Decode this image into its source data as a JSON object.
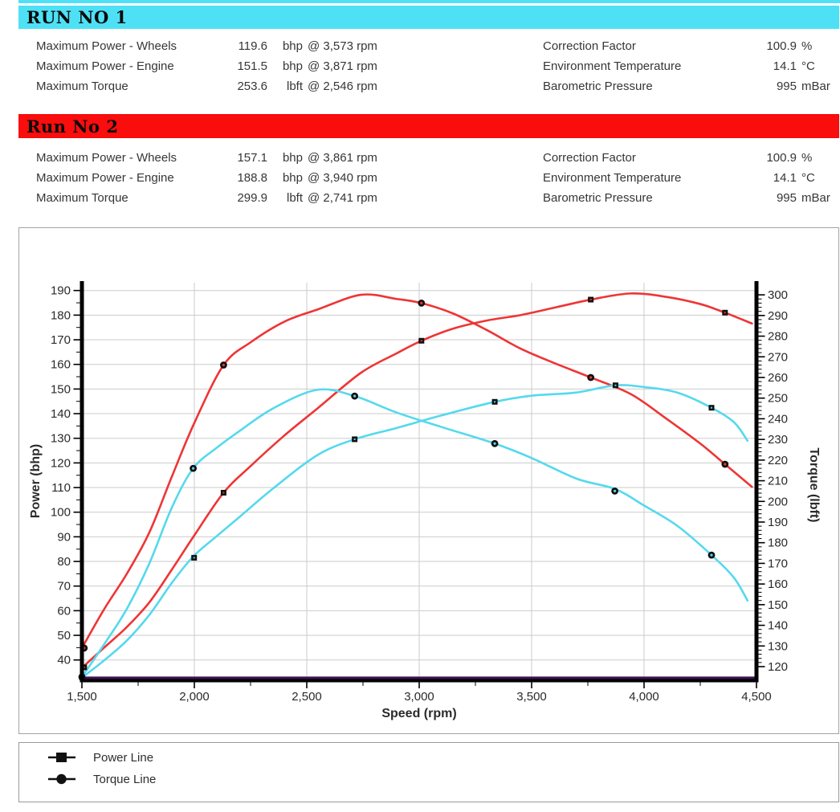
{
  "runs": [
    {
      "title": "RUN NO 1",
      "color": "#4ee1f6",
      "rows": [
        {
          "label": "Maximum Power - Wheels",
          "value": "119.6",
          "unit": "bhp",
          "at": "@ 3,573 rpm"
        },
        {
          "label": "Maximum Power - Engine",
          "value": "151.5",
          "unit": "bhp",
          "at": "@ 3,871 rpm"
        },
        {
          "label": "Maximum Torque",
          "value": "253.6",
          "unit": "lbft",
          "at": "@ 2,546 rpm"
        }
      ],
      "env": [
        {
          "label": "Correction Factor",
          "value": "100.9",
          "unit": "%"
        },
        {
          "label": "Environment Temperature",
          "value": "14.1",
          "unit": "°C"
        },
        {
          "label": "Barometric Pressure",
          "value": "995",
          "unit": "mBar"
        }
      ]
    },
    {
      "title": "Run No 2",
      "color": "#f90d0d",
      "rows": [
        {
          "label": "Maximum Power - Wheels",
          "value": "157.1",
          "unit": "bhp",
          "at": "@ 3,861 rpm"
        },
        {
          "label": "Maximum Power - Engine",
          "value": "188.8",
          "unit": "bhp",
          "at": "@ 3,940 rpm"
        },
        {
          "label": "Maximum Torque",
          "value": "299.9",
          "unit": "lbft",
          "at": "@ 2,741 rpm"
        }
      ],
      "env": [
        {
          "label": "Correction Factor",
          "value": "100.9",
          "unit": "%"
        },
        {
          "label": "Environment Temperature",
          "value": "14.1",
          "unit": "°C"
        },
        {
          "label": "Barometric Pressure",
          "value": "995",
          "unit": "mBar"
        }
      ]
    }
  ],
  "chart_data": {
    "type": "line",
    "xlabel": "Speed (rpm)",
    "ylabel_left": "Power (bhp)",
    "ylabel_right": "Torque (lbft)",
    "x_range": [
      1500,
      4500
    ],
    "x_tick_step": 500,
    "x_minor_step": 250,
    "power_axis": {
      "min": 40,
      "max": 190,
      "tick_step": 10,
      "minor_step": 5
    },
    "torque_axis": {
      "min": 120,
      "max": 300,
      "tick_step": 10,
      "minor_step": 2
    },
    "grid_color": "#cbcbcb",
    "series": [
      {
        "name": "run2-torque-line",
        "run": "Run No 2",
        "measure": "torque",
        "axis": "torque",
        "color": "#ee3535",
        "marker": "circle",
        "points": [
          [
            1500,
            129
          ],
          [
            1600,
            148
          ],
          [
            1700,
            165
          ],
          [
            1800,
            185
          ],
          [
            1900,
            212
          ],
          [
            2000,
            238
          ],
          [
            2130,
            266
          ],
          [
            2250,
            277
          ],
          [
            2400,
            287
          ],
          [
            2550,
            293
          ],
          [
            2741,
            300
          ],
          [
            2900,
            298
          ],
          [
            3010,
            296
          ],
          [
            3150,
            291
          ],
          [
            3300,
            283
          ],
          [
            3450,
            274
          ],
          [
            3600,
            267
          ],
          [
            3763,
            260
          ],
          [
            3940,
            252
          ],
          [
            4100,
            240
          ],
          [
            4250,
            228
          ],
          [
            4360,
            218
          ],
          [
            4480,
            207
          ]
        ],
        "marker_points": [
          [
            1510,
            129
          ],
          [
            2130,
            266
          ],
          [
            3010,
            296
          ],
          [
            3763,
            260
          ],
          [
            4360,
            218
          ]
        ]
      },
      {
        "name": "run2-power-line",
        "run": "Run No 2",
        "measure": "power",
        "axis": "power",
        "color": "#ee3535",
        "marker": "square",
        "points": [
          [
            1500,
            36.8
          ],
          [
            1600,
            45.1
          ],
          [
            1700,
            53.4
          ],
          [
            1800,
            63.4
          ],
          [
            1900,
            76.7
          ],
          [
            2000,
            90.6
          ],
          [
            2130,
            107.9
          ],
          [
            2250,
            118.7
          ],
          [
            2400,
            131.1
          ],
          [
            2550,
            142.3
          ],
          [
            2741,
            156.6
          ],
          [
            2900,
            164.5
          ],
          [
            3010,
            169.6
          ],
          [
            3150,
            174.5
          ],
          [
            3300,
            177.8
          ],
          [
            3450,
            180.0
          ],
          [
            3600,
            183.0
          ],
          [
            3763,
            186.3
          ],
          [
            3940,
            188.8
          ],
          [
            4100,
            187.4
          ],
          [
            4250,
            184.5
          ],
          [
            4360,
            181.0
          ],
          [
            4480,
            176.6
          ]
        ],
        "marker_points": [
          [
            1510,
            37
          ],
          [
            2130,
            107.9
          ],
          [
            3010,
            169.6
          ],
          [
            3763,
            186.3
          ],
          [
            4360,
            181.0
          ]
        ]
      },
      {
        "name": "run1-torque-line",
        "run": "RUN NO 1",
        "measure": "torque",
        "axis": "torque",
        "color": "#55d9ed",
        "marker": "circle",
        "points": [
          [
            1500,
            115
          ],
          [
            1600,
            131
          ],
          [
            1700,
            148
          ],
          [
            1800,
            170
          ],
          [
            1900,
            197
          ],
          [
            1995,
            216
          ],
          [
            2100,
            226
          ],
          [
            2200,
            234
          ],
          [
            2350,
            245
          ],
          [
            2546,
            254
          ],
          [
            2713,
            251
          ],
          [
            2900,
            243
          ],
          [
            3100,
            236
          ],
          [
            3336,
            228
          ],
          [
            3500,
            221
          ],
          [
            3700,
            211
          ],
          [
            3871,
            206
          ],
          [
            4000,
            198
          ],
          [
            4150,
            188
          ],
          [
            4300,
            174
          ],
          [
            4400,
            163
          ],
          [
            4460,
            152
          ]
        ],
        "marker_points": [
          [
            1500,
            115
          ],
          [
            1995,
            216
          ],
          [
            2713,
            251
          ],
          [
            3336,
            228
          ],
          [
            3870,
            205
          ],
          [
            4300,
            174
          ]
        ]
      },
      {
        "name": "run1-power-line",
        "run": "RUN NO 1",
        "measure": "power",
        "axis": "power",
        "color": "#55d9ed",
        "marker": "square",
        "points": [
          [
            1500,
            32.8
          ],
          [
            1600,
            39.9
          ],
          [
            1700,
            47.9
          ],
          [
            1800,
            58.3
          ],
          [
            1900,
            71.3
          ],
          [
            1995,
            82.0
          ],
          [
            2100,
            90.3
          ],
          [
            2200,
            98.0
          ],
          [
            2350,
            109.6
          ],
          [
            2546,
            123.1
          ],
          [
            2713,
            129.6
          ],
          [
            2900,
            134.2
          ],
          [
            3100,
            139.3
          ],
          [
            3336,
            144.8
          ],
          [
            3500,
            147.3
          ],
          [
            3700,
            148.6
          ],
          [
            3871,
            151.5
          ],
          [
            4000,
            150.8
          ],
          [
            4150,
            148.5
          ],
          [
            4300,
            142.4
          ],
          [
            4400,
            136.5
          ],
          [
            4460,
            129.0
          ]
        ],
        "marker_points": [
          [
            1500,
            33
          ],
          [
            1999,
            81.5
          ],
          [
            2713,
            129.6
          ],
          [
            3336,
            144.8
          ],
          [
            3873,
            151.5
          ],
          [
            4300,
            142.4
          ]
        ]
      },
      {
        "name": "baseline-line",
        "run": "",
        "measure": "baseline",
        "axis": "torque",
        "color": "#3c1050",
        "marker": "none",
        "points": [
          [
            1500,
            114.5
          ],
          [
            4500,
            114.5
          ]
        ],
        "marker_points": []
      }
    ],
    "legend": [
      {
        "label": "Power Line",
        "marker": "square"
      },
      {
        "label": "Torque Line",
        "marker": "circle"
      }
    ]
  }
}
